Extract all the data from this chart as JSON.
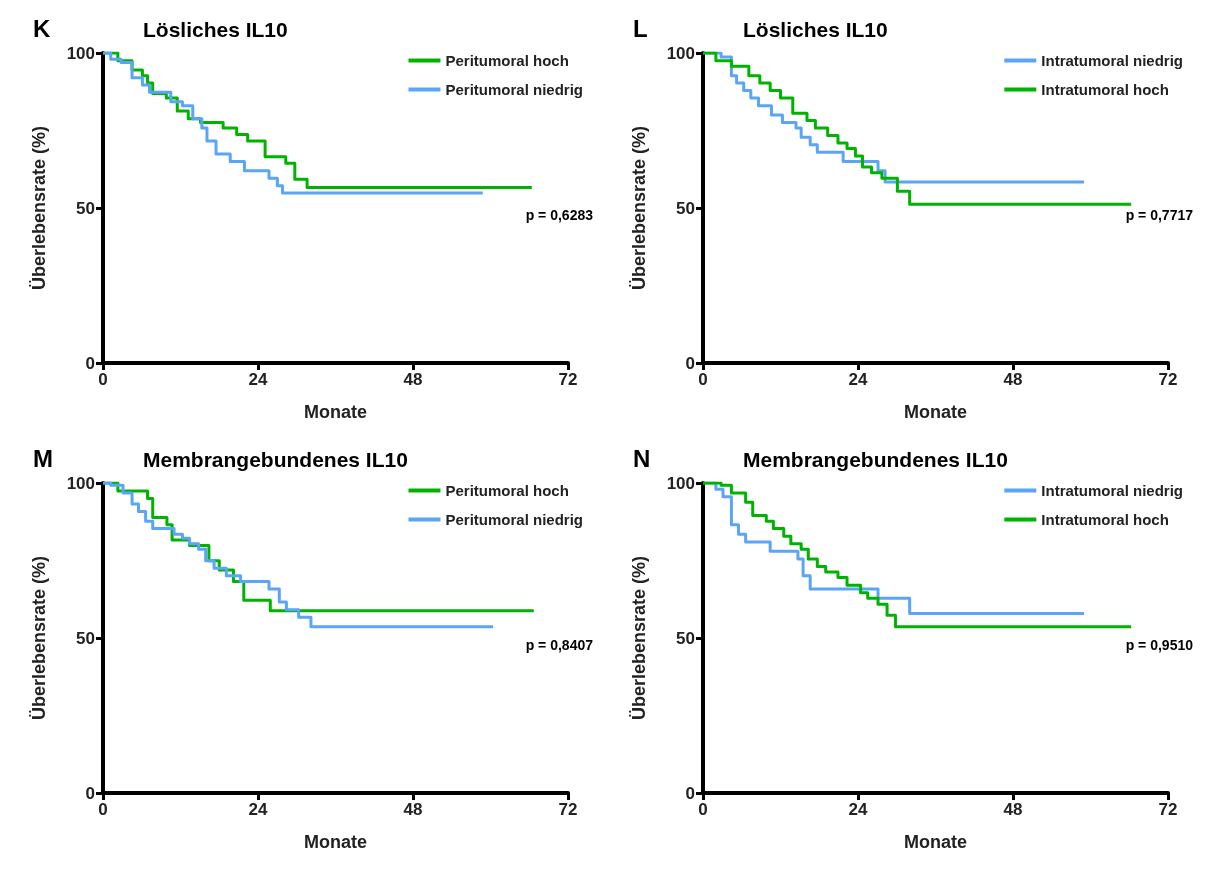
{
  "chart_data": [
    {
      "type": "step",
      "title": "Lösliches IL10",
      "xlabel": "Monate",
      "ylabel": "Überlebensrate (%)",
      "annotations": [
        "K",
        "p = 0,6283"
      ],
      "xlim": [
        0,
        72
      ],
      "xticks": [
        0,
        24,
        48,
        72
      ],
      "ylim": [
        0,
        100
      ],
      "yticks": [
        0,
        50,
        100
      ],
      "grid": false,
      "legend": "top right",
      "marker": "none",
      "series": [
        {
          "name": "Peritumoral hoch",
          "color": "#00b300",
          "x": [
            0,
            2.3,
            4.5,
            6.1,
            6.9,
            7.7,
            9.8,
            11.5,
            13.2,
            15.1,
            18.6,
            20.7,
            22.4,
            25.1,
            28.3,
            29.7,
            31.6,
            66.4
          ],
          "values": [
            100,
            97.5,
            94.5,
            92.7,
            90.3,
            86.9,
            85.5,
            81.3,
            78.8,
            77.6,
            75.8,
            73.7,
            71.6,
            66.5,
            64.4,
            59.3,
            56.6,
            56.6
          ]
        },
        {
          "name": "Peritumoral niedrig",
          "color": "#5aa5f5",
          "x": [
            0,
            1.2,
            2.8,
            4.5,
            6.1,
            7.2,
            10.5,
            12.3,
            13.9,
            15.3,
            16.1,
            17.5,
            19.7,
            21.9,
            25.7,
            27,
            27.8,
            58.8
          ],
          "values": [
            100,
            98,
            96.9,
            92,
            89.7,
            87.3,
            84.3,
            83,
            78.8,
            75.8,
            71.6,
            67.4,
            65,
            62,
            59.6,
            57.2,
            54.8,
            54.8
          ]
        }
      ]
    },
    {
      "type": "step",
      "title": "Lösliches IL10",
      "xlabel": "Monate",
      "ylabel": "Überlebensrate (%)",
      "annotations": [
        "L",
        "p = 0,7717"
      ],
      "xlim": [
        0,
        72
      ],
      "xticks": [
        0,
        24,
        48,
        72
      ],
      "ylim": [
        0,
        100
      ],
      "yticks": [
        0,
        50,
        100
      ],
      "grid": false,
      "legend": "top right",
      "marker": "none",
      "series": [
        {
          "name": "Intratumoral niedrig",
          "color": "#5aa5f5",
          "x": [
            0,
            2.8,
            4.4,
            5.2,
            6.3,
            7.4,
            8.6,
            10.6,
            12.3,
            14.4,
            15.2,
            16.6,
            17.7,
            21.7,
            27.1,
            28.2,
            59
          ],
          "values": [
            100,
            98.7,
            92.7,
            90.3,
            87.9,
            85.5,
            83,
            80,
            77.6,
            75.8,
            72.8,
            70.4,
            68,
            65,
            62,
            58.4,
            58.4
          ]
        },
        {
          "name": "Intratumoral hoch",
          "color": "#00b300",
          "x": [
            0,
            2,
            4.4,
            7.1,
            8.8,
            10.4,
            12,
            13.9,
            16.1,
            17.4,
            19.3,
            20.9,
            22.3,
            23.6,
            24.7,
            26.1,
            27.7,
            30.1,
            32,
            66.3
          ],
          "values": [
            100,
            97.5,
            95.7,
            92.7,
            90.3,
            87.9,
            85.5,
            80.6,
            78.2,
            75.8,
            73.4,
            71,
            69.2,
            66.8,
            63.2,
            61.4,
            59.6,
            55.4,
            51.2,
            51.2
          ]
        }
      ]
    },
    {
      "type": "step",
      "title": "Membrangebundenes IL10",
      "xlabel": "Monate",
      "ylabel": "Überlebensrate (%)",
      "annotations": [
        "M",
        "p = 0,8407"
      ],
      "xlim": [
        0,
        72
      ],
      "xticks": [
        0,
        24,
        48,
        72
      ],
      "ylim": [
        0,
        100
      ],
      "yticks": [
        0,
        50,
        100
      ],
      "grid": false,
      "legend": "top right",
      "marker": "none",
      "series": [
        {
          "name": "Peritumoral hoch",
          "color": "#00b300",
          "x": [
            0,
            2.3,
            6.9,
            7.7,
            9.9,
            10.7,
            13.4,
            16.4,
            18,
            20.2,
            21.8,
            25.9,
            66.7
          ],
          "values": [
            100,
            97.4,
            95,
            88.9,
            86.5,
            81.6,
            79.8,
            74.9,
            71.9,
            68.2,
            62.2,
            58.8,
            58.8
          ]
        },
        {
          "name": "Peritumoral niedrig",
          "color": "#5aa5f5",
          "x": [
            0,
            1.2,
            3.1,
            4.5,
            5.5,
            6.6,
            7.7,
            11,
            12.3,
            13.4,
            14.8,
            15.9,
            17.2,
            19.1,
            21.3,
            25.7,
            27.3,
            28.4,
            30.3,
            32.2,
            60.4
          ],
          "values": [
            100,
            99.3,
            96.8,
            93.2,
            90.8,
            87.7,
            85.3,
            83.5,
            82.2,
            80.4,
            78.6,
            74.9,
            72.5,
            70.1,
            68.2,
            65.8,
            61.6,
            59.1,
            56.7,
            53.6,
            53.6
          ]
        }
      ]
    },
    {
      "type": "step",
      "title": "Membrangebundenes IL10",
      "xlabel": "Monate",
      "ylabel": "Überlebensrate (%)",
      "annotations": [
        "N",
        "p = 0,9510"
      ],
      "xlim": [
        0,
        72
      ],
      "xticks": [
        0,
        24,
        48,
        72
      ],
      "ylim": [
        0,
        100
      ],
      "yticks": [
        0,
        50,
        100
      ],
      "grid": false,
      "legend": "top right",
      "marker": "none",
      "series": [
        {
          "name": "Intratumoral niedrig",
          "color": "#5aa5f5",
          "x": [
            0,
            2,
            3.1,
            4.4,
            5.5,
            6.6,
            10.4,
            14.7,
            15.5,
            16.6,
            27.1,
            32,
            59
          ],
          "values": [
            100,
            98,
            95.6,
            86.5,
            83.5,
            81,
            78,
            75.5,
            70.1,
            65.8,
            62.8,
            57.9,
            57.9
          ]
        },
        {
          "name": "Intratumoral hoch",
          "color": "#00b300",
          "x": [
            0,
            2.8,
            4.4,
            6.6,
            7.7,
            9.8,
            10.9,
            12.5,
            13.6,
            15.2,
            16.3,
            17.7,
            19,
            20.9,
            22.3,
            24.4,
            25.5,
            27.1,
            28.5,
            29.8,
            66.3
          ],
          "values": [
            100,
            99.3,
            96.8,
            93.8,
            89.5,
            87.7,
            85.3,
            82.8,
            80.4,
            78.6,
            75.5,
            73.1,
            71.3,
            69.5,
            67,
            64.6,
            62.8,
            60.9,
            57.3,
            53.6,
            53.6
          ]
        }
      ]
    }
  ]
}
